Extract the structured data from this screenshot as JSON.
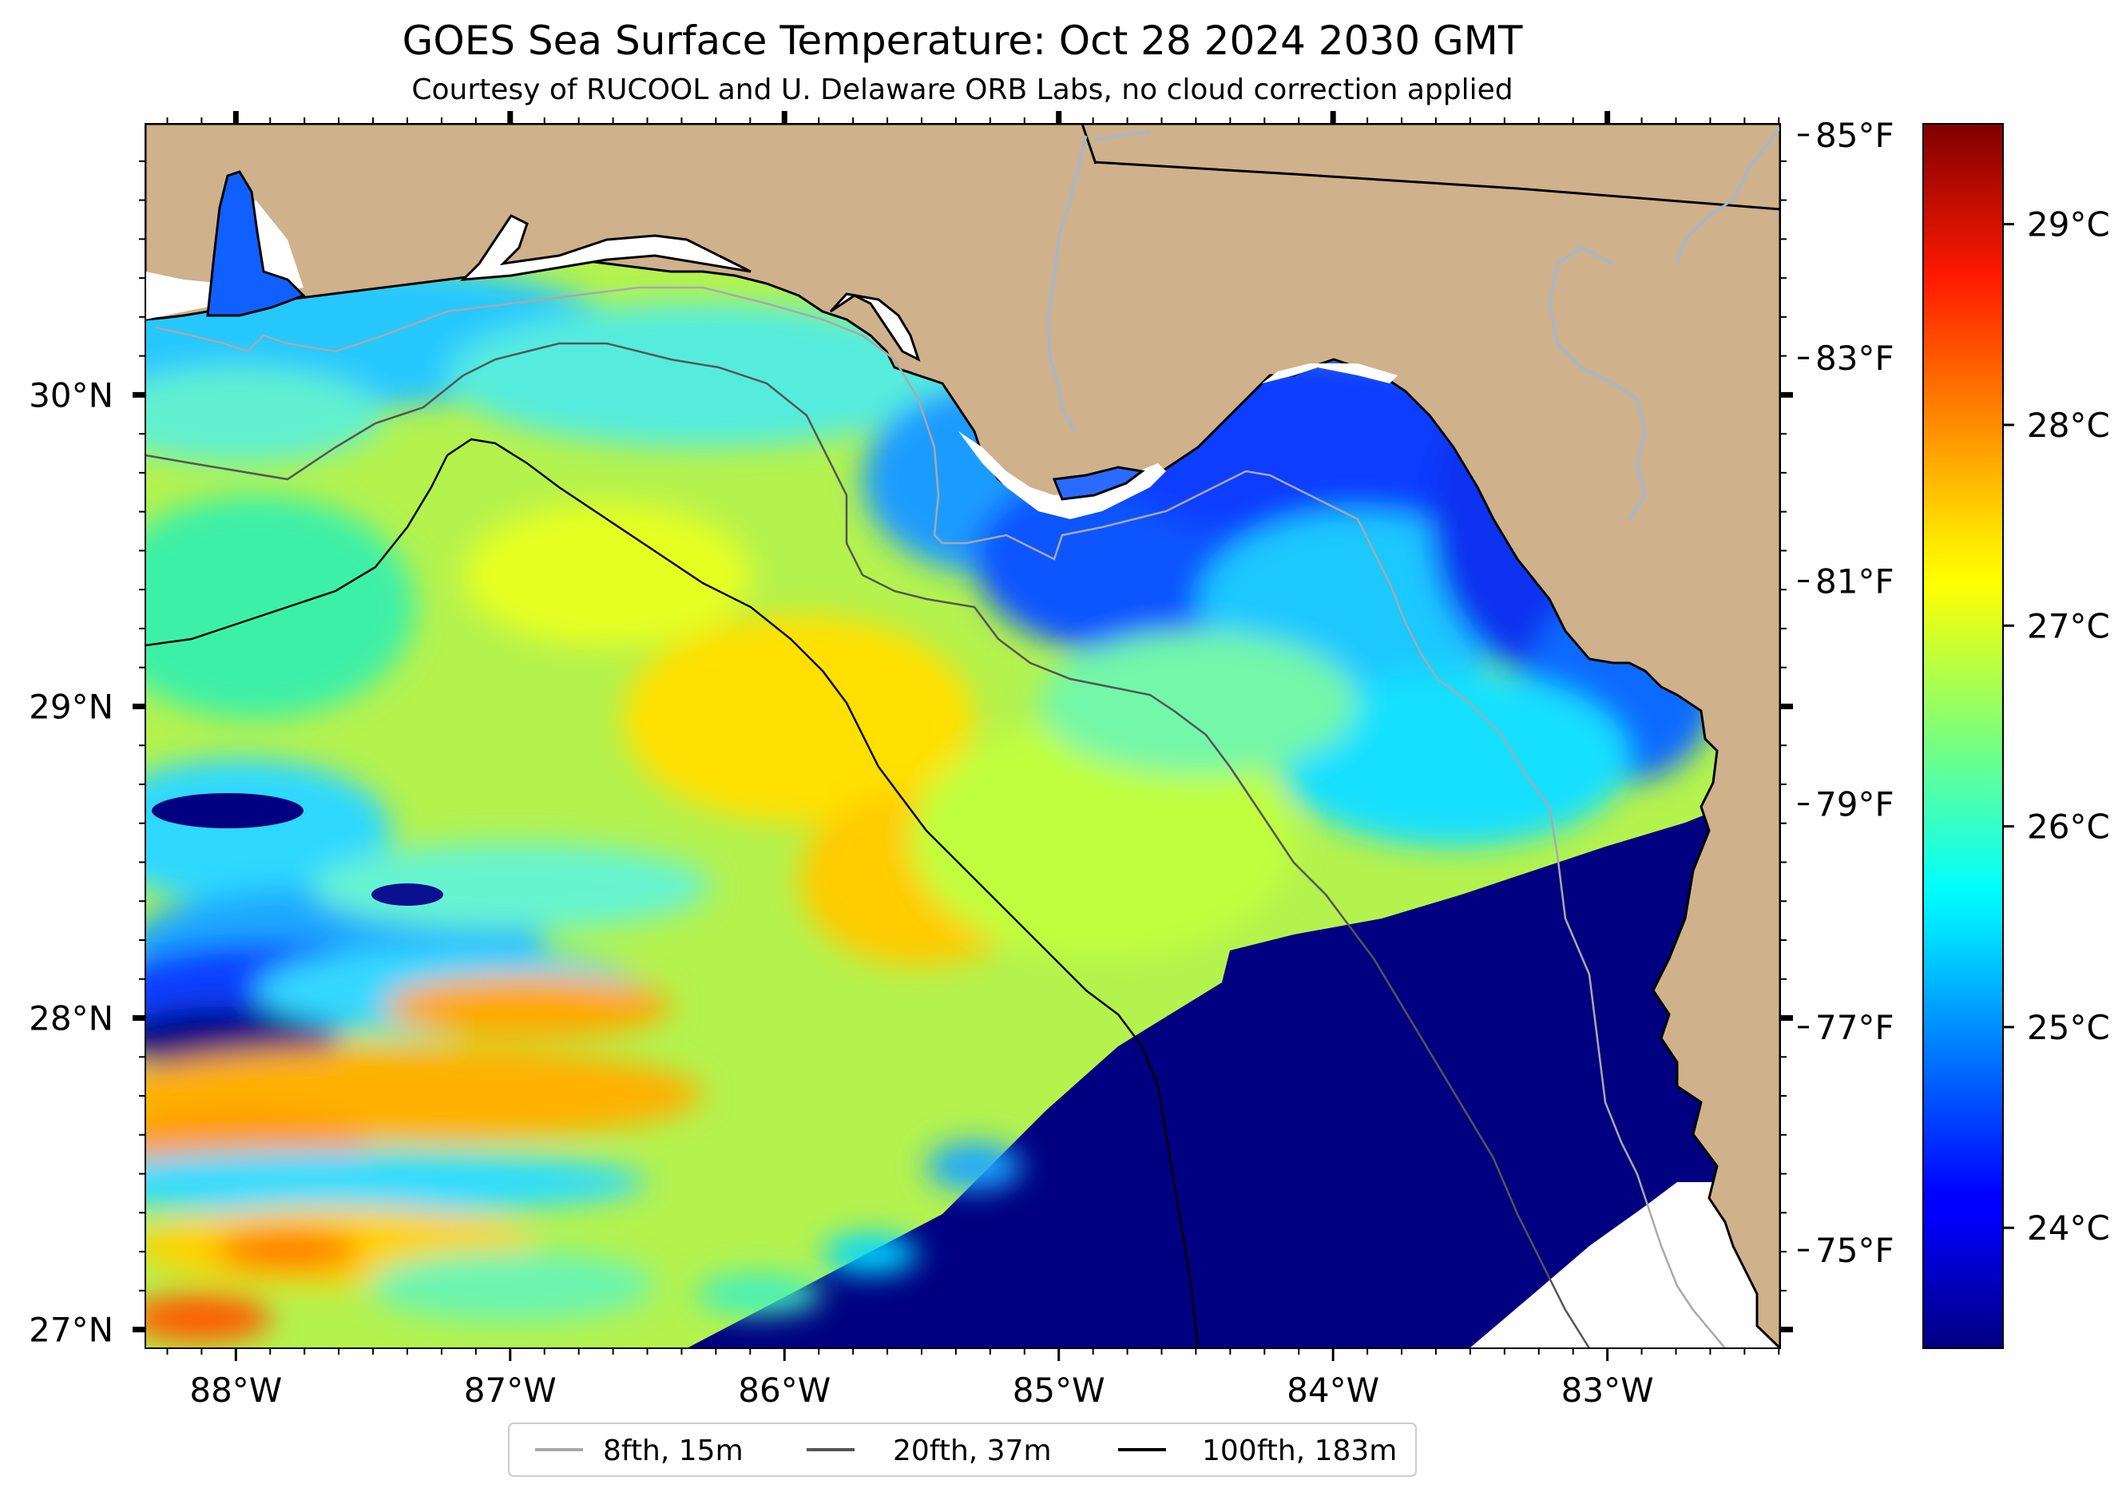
{
  "title": "GOES Sea Surface Temperature: Oct 28 2024 2030 GMT",
  "subtitle": "Courtesy of RUCOOL and U. Delaware ORB Labs, no cloud correction applied",
  "map": {
    "extent": {
      "lon_min": -88.33,
      "lon_max": -82.37,
      "lat_min": 26.94,
      "lat_max": 30.87
    },
    "colors": {
      "land": "#cfb18b",
      "nodata": "#ffffff",
      "coastline": "#000000",
      "rivers": "#9eb8d8",
      "state_border": "#000000"
    },
    "lon_ticks": [
      {
        "value": -88,
        "label": "88°W"
      },
      {
        "value": -87,
        "label": "87°W"
      },
      {
        "value": -86,
        "label": "86°W"
      },
      {
        "value": -85,
        "label": "85°W"
      },
      {
        "value": -84,
        "label": "84°W"
      },
      {
        "value": -83,
        "label": "83°W"
      }
    ],
    "lat_ticks": [
      {
        "value": 30,
        "label": "30°N"
      },
      {
        "value": 29,
        "label": "29°N"
      },
      {
        "value": 28,
        "label": "28°N"
      },
      {
        "value": 27,
        "label": "27°N"
      }
    ]
  },
  "fahrenheit_scale": {
    "ticks": [
      {
        "value": 85,
        "label": "85°F"
      },
      {
        "value": 83,
        "label": "83°F"
      },
      {
        "value": 81,
        "label": "81°F"
      },
      {
        "value": 79,
        "label": "79°F"
      },
      {
        "value": 77,
        "label": "77°F"
      },
      {
        "value": 75,
        "label": "75°F"
      }
    ]
  },
  "colorbar": {
    "cmap": "jet",
    "vmin_c": 23.4,
    "vmax_c": 29.5,
    "ticks": [
      {
        "value": 29,
        "label": "29°C"
      },
      {
        "value": 28,
        "label": "28°C"
      },
      {
        "value": 27,
        "label": "27°C"
      },
      {
        "value": 26,
        "label": "26°C"
      },
      {
        "value": 25,
        "label": "25°C"
      },
      {
        "value": 24,
        "label": "24°C"
      }
    ]
  },
  "legend": {
    "items": [
      {
        "label": "8fth, 15m",
        "color": "#a9a9a9"
      },
      {
        "label": "20fth, 37m",
        "color": "#555555"
      },
      {
        "label": "100fth, 183m",
        "color": "#000000"
      }
    ]
  }
}
